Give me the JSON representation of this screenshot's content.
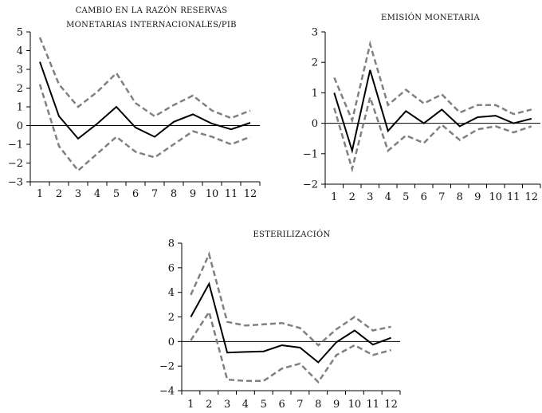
{
  "chart_data": [
    {
      "type": "line",
      "title": [
        "CAMBIO EN LA RAZÓN RESERVAS",
        "MONETARIAS INTERNACIONALES/PIB"
      ],
      "x": [
        1,
        2,
        3,
        4,
        5,
        6,
        7,
        8,
        9,
        10,
        11,
        12
      ],
      "ylim": [
        -3,
        5
      ],
      "yticks": [
        5,
        4,
        3,
        2,
        1,
        0,
        -1,
        -2,
        -3
      ],
      "series": [
        {
          "style": "solid",
          "color": "#000000",
          "values": [
            3.4,
            0.5,
            -0.7,
            0.1,
            1.0,
            -0.1,
            -0.6,
            0.2,
            0.6,
            0.1,
            -0.2,
            0.15
          ]
        },
        {
          "style": "dashed",
          "color": "#808080",
          "values": [
            4.7,
            2.2,
            1.0,
            1.8,
            2.8,
            1.2,
            0.5,
            1.1,
            1.6,
            0.8,
            0.4,
            0.8
          ]
        },
        {
          "style": "dashed",
          "color": "#808080",
          "values": [
            2.2,
            -1.1,
            -2.4,
            -1.5,
            -0.6,
            -1.4,
            -1.7,
            -1.0,
            -0.3,
            -0.6,
            -1.0,
            -0.6
          ]
        }
      ]
    },
    {
      "type": "line",
      "title": [
        "EMISIÓN MONETARIA"
      ],
      "x": [
        1,
        2,
        3,
        4,
        5,
        6,
        7,
        8,
        9,
        10,
        11,
        12
      ],
      "ylim": [
        -2,
        3
      ],
      "yticks": [
        3,
        2,
        1,
        0,
        -1,
        -2
      ],
      "series": [
        {
          "style": "solid",
          "color": "#000000",
          "values": [
            1.0,
            -0.9,
            1.75,
            -0.25,
            0.4,
            0.0,
            0.45,
            -0.1,
            0.2,
            0.25,
            0.0,
            0.15
          ]
        },
        {
          "style": "dashed",
          "color": "#808080",
          "values": [
            1.5,
            0.1,
            2.6,
            0.6,
            1.1,
            0.65,
            0.95,
            0.35,
            0.6,
            0.6,
            0.3,
            0.45
          ]
        },
        {
          "style": "dashed",
          "color": "#808080",
          "values": [
            0.5,
            -1.5,
            0.85,
            -0.9,
            -0.4,
            -0.65,
            -0.05,
            -0.55,
            -0.2,
            -0.1,
            -0.3,
            -0.1
          ]
        }
      ]
    },
    {
      "type": "line",
      "title": [
        "ESTERILIZACIÓN"
      ],
      "x": [
        1,
        2,
        3,
        4,
        5,
        6,
        7,
        8,
        9,
        10,
        11,
        12
      ],
      "ylim": [
        -4,
        8
      ],
      "yticks": [
        8,
        6,
        4,
        2,
        0,
        -2,
        -4
      ],
      "series": [
        {
          "style": "solid",
          "color": "#000000",
          "values": [
            2.0,
            4.7,
            -0.9,
            -0.85,
            -0.8,
            -0.3,
            -0.5,
            -1.7,
            -0.05,
            0.9,
            -0.25,
            0.3
          ]
        },
        {
          "style": "dashed",
          "color": "#808080",
          "values": [
            3.8,
            7.1,
            1.6,
            1.3,
            1.4,
            1.5,
            1.1,
            -0.3,
            1.0,
            2.0,
            0.9,
            1.2
          ]
        },
        {
          "style": "dashed",
          "color": "#808080",
          "values": [
            0.1,
            2.4,
            -3.1,
            -3.2,
            -3.2,
            -2.2,
            -1.8,
            -3.3,
            -1.1,
            -0.3,
            -1.1,
            -0.7
          ]
        }
      ]
    }
  ]
}
